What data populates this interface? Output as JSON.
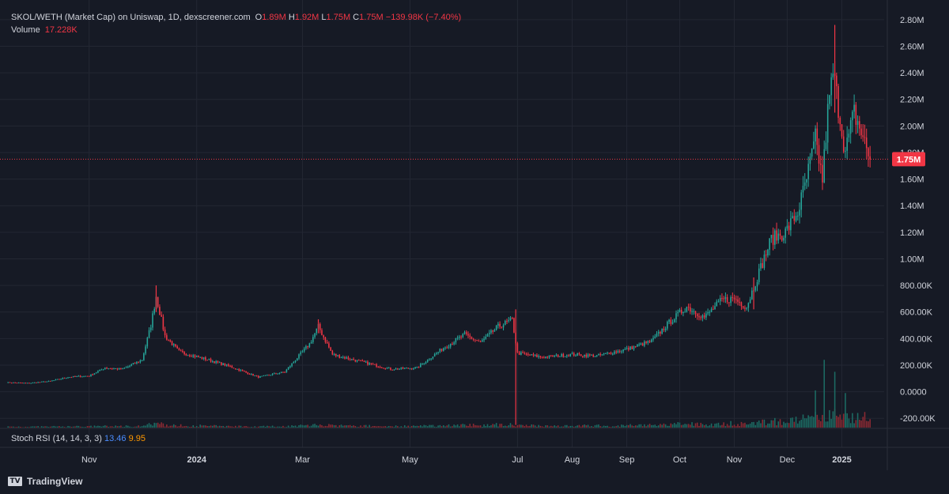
{
  "legend": {
    "title": "SKOL/WETH (Market Cap) on Uniswap, 1D, dexscreener.com",
    "o_label": "O",
    "o_value": "1.89M",
    "h_label": "H",
    "h_value": "1.92M",
    "l_label": "L",
    "l_value": "1.75M",
    "c_label": "C",
    "c_value": "1.75M",
    "change": "−139.98K (−7.40%)",
    "volume_label": "Volume",
    "volume_value": "17.228K"
  },
  "stoch": {
    "label": "Stoch RSI (14, 14, 3, 3)",
    "k_value": "13.46",
    "d_value": "9.95"
  },
  "last_price_label": "1.75M",
  "brand": {
    "name": "TradingView",
    "logo_glyph": "TV"
  },
  "colors": {
    "up": "#26a69a",
    "down": "#f23645",
    "up_volume": "#1c6b63",
    "down_volume": "#8b2a33",
    "grid": "#232733",
    "axis_text": "#d1d4dc",
    "background": "#161a25"
  },
  "chart_data": {
    "type": "candlestick",
    "price_axis": {
      "ticks": [
        -200000,
        0,
        200000,
        400000,
        600000,
        800000,
        1000000,
        1200000,
        1400000,
        1600000,
        1800000,
        2000000,
        2200000,
        2400000,
        2600000,
        2800000
      ],
      "tick_labels": [
        "-200.00K",
        "0.0000",
        "200.00K",
        "400.00K",
        "600.00K",
        "800.00K",
        "1.00M",
        "1.20M",
        "1.40M",
        "1.60M",
        "1.80M",
        "2.00M",
        "2.20M",
        "2.40M",
        "2.60M",
        "2.80M"
      ],
      "range": [
        -270000,
        2900000
      ]
    },
    "time_axis": {
      "labels": [
        "Nov",
        "2024",
        "Mar",
        "May",
        "Jul",
        "Aug",
        "Sep",
        "Oct",
        "Nov",
        "Dec",
        "2025"
      ],
      "label_dates": [
        "2023-11-01",
        "2024-01-01",
        "2024-03-01",
        "2024-05-01",
        "2024-07-01",
        "2024-08-01",
        "2024-09-01",
        "2024-10-01",
        "2024-11-01",
        "2024-12-01",
        "2025-01-01"
      ],
      "bold": [
        false,
        true,
        false,
        false,
        false,
        false,
        false,
        false,
        false,
        false,
        true
      ],
      "range": [
        "2023-09-15",
        "2025-01-25"
      ]
    },
    "last_price": 1750000,
    "series_close": [
      {
        "date": "2023-09-15",
        "value": 70000
      },
      {
        "date": "2023-09-28",
        "value": 65000
      },
      {
        "date": "2023-10-10",
        "value": 80000
      },
      {
        "date": "2023-10-20",
        "value": 110000
      },
      {
        "date": "2023-11-01",
        "value": 120000
      },
      {
        "date": "2023-11-10",
        "value": 180000
      },
      {
        "date": "2023-11-20",
        "value": 170000
      },
      {
        "date": "2023-12-01",
        "value": 240000
      },
      {
        "date": "2023-12-06",
        "value": 500000
      },
      {
        "date": "2023-12-09",
        "value": 720000
      },
      {
        "date": "2023-12-14",
        "value": 420000
      },
      {
        "date": "2023-12-22",
        "value": 300000
      },
      {
        "date": "2024-01-05",
        "value": 250000
      },
      {
        "date": "2024-01-20",
        "value": 190000
      },
      {
        "date": "2024-02-05",
        "value": 110000
      },
      {
        "date": "2024-02-20",
        "value": 150000
      },
      {
        "date": "2024-03-05",
        "value": 360000
      },
      {
        "date": "2024-03-10",
        "value": 490000
      },
      {
        "date": "2024-03-18",
        "value": 280000
      },
      {
        "date": "2024-04-05",
        "value": 220000
      },
      {
        "date": "2024-04-20",
        "value": 170000
      },
      {
        "date": "2024-05-05",
        "value": 180000
      },
      {
        "date": "2024-05-20",
        "value": 330000
      },
      {
        "date": "2024-06-01",
        "value": 430000
      },
      {
        "date": "2024-06-10",
        "value": 370000
      },
      {
        "date": "2024-06-20",
        "value": 490000
      },
      {
        "date": "2024-06-28",
        "value": 540000
      },
      {
        "date": "2024-07-01",
        "value": 290000
      },
      {
        "date": "2024-07-15",
        "value": 260000
      },
      {
        "date": "2024-08-01",
        "value": 280000
      },
      {
        "date": "2024-08-15",
        "value": 270000
      },
      {
        "date": "2024-09-01",
        "value": 320000
      },
      {
        "date": "2024-09-15",
        "value": 380000
      },
      {
        "date": "2024-09-25",
        "value": 520000
      },
      {
        "date": "2024-10-05",
        "value": 640000
      },
      {
        "date": "2024-10-15",
        "value": 560000
      },
      {
        "date": "2024-10-25",
        "value": 690000
      },
      {
        "date": "2024-11-01",
        "value": 700000
      },
      {
        "date": "2024-11-08",
        "value": 640000
      },
      {
        "date": "2024-11-15",
        "value": 900000
      },
      {
        "date": "2024-11-22",
        "value": 1150000
      },
      {
        "date": "2024-11-30",
        "value": 1200000
      },
      {
        "date": "2024-12-07",
        "value": 1350000
      },
      {
        "date": "2024-12-12",
        "value": 1600000
      },
      {
        "date": "2024-12-17",
        "value": 1900000
      },
      {
        "date": "2024-12-21",
        "value": 1600000
      },
      {
        "date": "2024-12-24",
        "value": 2100000
      },
      {
        "date": "2024-12-27",
        "value": 2400000
      },
      {
        "date": "2024-12-30",
        "value": 2150000
      },
      {
        "date": "2025-01-03",
        "value": 1800000
      },
      {
        "date": "2025-01-08",
        "value": 2100000
      },
      {
        "date": "2025-01-12",
        "value": 1950000
      },
      {
        "date": "2025-01-17",
        "value": 1750000
      }
    ],
    "spikes": [
      {
        "date": "2024-06-30",
        "high": 620000,
        "low": -250000
      },
      {
        "date": "2024-12-28",
        "high": 2760000,
        "low": 2100000
      },
      {
        "date": "2023-12-09",
        "high": 800000,
        "low": 600000
      },
      {
        "date": "2024-03-10",
        "high": 545000,
        "low": 440000
      },
      {
        "date": "2024-11-12",
        "high": 860000,
        "low": 620000
      }
    ],
    "volume_spikes": [
      {
        "date": "2024-12-22",
        "value": 510000
      },
      {
        "date": "2024-12-28",
        "value": 420000
      },
      {
        "date": "2024-12-17",
        "value": 280000
      },
      {
        "date": "2025-01-03",
        "value": 260000
      }
    ],
    "stoch_rsi": {
      "k": 13.46,
      "d": 9.95
    }
  }
}
